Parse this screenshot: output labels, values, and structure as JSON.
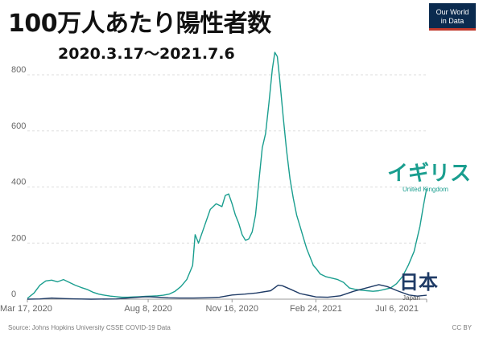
{
  "title": "100万人あたり陽性者数",
  "subtitle": "2020.3.17〜2021.7.6",
  "logo": {
    "line1": "Our World",
    "line2": "in Data"
  },
  "footer": {
    "source": "Source: Johns Hopkins University CSSE COVID-19 Data",
    "license": "CC BY"
  },
  "colors": {
    "uk": "#1a9e8f",
    "japan": "#1f3b66",
    "grid": "#dddddd",
    "axis": "#666666"
  },
  "chart_data": {
    "type": "line",
    "title": "100万人あたり陽性者数",
    "subtitle": "2020.3.17〜2021.7.6",
    "xlim": [
      "2020-03-17",
      "2021-07-06"
    ],
    "ylim": [
      0,
      880
    ],
    "yticks": [
      0,
      200,
      400,
      600,
      800
    ],
    "xticks": [
      {
        "date": "2020-03-17",
        "label": "Mar 17, 2020"
      },
      {
        "date": "2020-08-08",
        "label": "Aug 8, 2020"
      },
      {
        "date": "2020-11-16",
        "label": "Nov 16, 2020"
      },
      {
        "date": "2021-02-24",
        "label": "Feb 24, 2021"
      },
      {
        "date": "2021-07-06",
        "label": "Jul 6, 2021"
      }
    ],
    "grid": true,
    "series": [
      {
        "name": "United Kingdom",
        "label_ja": "イギリス",
        "color": "#1a9e8f",
        "points": [
          [
            "2020-03-17",
            3
          ],
          [
            "2020-03-25",
            22
          ],
          [
            "2020-04-01",
            50
          ],
          [
            "2020-04-08",
            65
          ],
          [
            "2020-04-15",
            68
          ],
          [
            "2020-04-22",
            62
          ],
          [
            "2020-04-29",
            70
          ],
          [
            "2020-05-06",
            60
          ],
          [
            "2020-05-13",
            50
          ],
          [
            "2020-05-20",
            42
          ],
          [
            "2020-05-27",
            35
          ],
          [
            "2020-06-03",
            25
          ],
          [
            "2020-06-10",
            18
          ],
          [
            "2020-06-17",
            14
          ],
          [
            "2020-06-24",
            11
          ],
          [
            "2020-07-01",
            9
          ],
          [
            "2020-07-08",
            7
          ],
          [
            "2020-07-15",
            7
          ],
          [
            "2020-07-22",
            8
          ],
          [
            "2020-07-29",
            9
          ],
          [
            "2020-08-05",
            10
          ],
          [
            "2020-08-12",
            11
          ],
          [
            "2020-08-19",
            12
          ],
          [
            "2020-08-26",
            14
          ],
          [
            "2020-09-02",
            18
          ],
          [
            "2020-09-09",
            28
          ],
          [
            "2020-09-16",
            45
          ],
          [
            "2020-09-23",
            70
          ],
          [
            "2020-09-30",
            120
          ],
          [
            "2020-10-03",
            230
          ],
          [
            "2020-10-07",
            200
          ],
          [
            "2020-10-14",
            260
          ],
          [
            "2020-10-21",
            320
          ],
          [
            "2020-10-28",
            340
          ],
          [
            "2020-11-04",
            330
          ],
          [
            "2020-11-08",
            370
          ],
          [
            "2020-11-12",
            375
          ],
          [
            "2020-11-16",
            340
          ],
          [
            "2020-11-20",
            300
          ],
          [
            "2020-11-24",
            270
          ],
          [
            "2020-11-28",
            230
          ],
          [
            "2020-12-02",
            210
          ],
          [
            "2020-12-06",
            215
          ],
          [
            "2020-12-10",
            240
          ],
          [
            "2020-12-14",
            300
          ],
          [
            "2020-12-18",
            420
          ],
          [
            "2020-12-22",
            540
          ],
          [
            "2020-12-26",
            590
          ],
          [
            "2020-12-30",
            700
          ],
          [
            "2021-01-03",
            820
          ],
          [
            "2021-01-06",
            880
          ],
          [
            "2021-01-09",
            865
          ],
          [
            "2021-01-12",
            780
          ],
          [
            "2021-01-16",
            650
          ],
          [
            "2021-01-20",
            530
          ],
          [
            "2021-01-24",
            430
          ],
          [
            "2021-01-28",
            360
          ],
          [
            "2021-02-01",
            300
          ],
          [
            "2021-02-05",
            260
          ],
          [
            "2021-02-09",
            220
          ],
          [
            "2021-02-13",
            180
          ],
          [
            "2021-02-17",
            150
          ],
          [
            "2021-02-21",
            120
          ],
          [
            "2021-02-24",
            110
          ],
          [
            "2021-03-01",
            90
          ],
          [
            "2021-03-08",
            80
          ],
          [
            "2021-03-15",
            75
          ],
          [
            "2021-03-22",
            70
          ],
          [
            "2021-03-29",
            60
          ],
          [
            "2021-04-05",
            40
          ],
          [
            "2021-04-12",
            35
          ],
          [
            "2021-04-19",
            32
          ],
          [
            "2021-04-26",
            30
          ],
          [
            "2021-05-03",
            28
          ],
          [
            "2021-05-10",
            30
          ],
          [
            "2021-05-17",
            35
          ],
          [
            "2021-05-24",
            40
          ],
          [
            "2021-05-31",
            55
          ],
          [
            "2021-06-07",
            80
          ],
          [
            "2021-06-14",
            120
          ],
          [
            "2021-06-21",
            170
          ],
          [
            "2021-06-28",
            260
          ],
          [
            "2021-07-02",
            330
          ],
          [
            "2021-07-06",
            395
          ]
        ]
      },
      {
        "name": "Japan",
        "label_ja": "日本",
        "color": "#1f3b66",
        "points": [
          [
            "2020-03-17",
            0
          ],
          [
            "2020-04-01",
            1
          ],
          [
            "2020-04-15",
            4
          ],
          [
            "2020-05-01",
            2
          ],
          [
            "2020-05-15",
            1
          ],
          [
            "2020-06-01",
            0
          ],
          [
            "2020-07-01",
            1
          ],
          [
            "2020-07-15",
            4
          ],
          [
            "2020-08-01",
            8
          ],
          [
            "2020-08-08",
            9
          ],
          [
            "2020-08-20",
            7
          ],
          [
            "2020-09-01",
            5
          ],
          [
            "2020-09-15",
            4
          ],
          [
            "2020-10-01",
            4
          ],
          [
            "2020-10-15",
            5
          ],
          [
            "2020-11-01",
            7
          ],
          [
            "2020-11-16",
            15
          ],
          [
            "2020-12-01",
            18
          ],
          [
            "2020-12-15",
            22
          ],
          [
            "2021-01-01",
            30
          ],
          [
            "2021-01-10",
            50
          ],
          [
            "2021-01-15",
            48
          ],
          [
            "2021-01-25",
            35
          ],
          [
            "2021-02-05",
            20
          ],
          [
            "2021-02-24",
            8
          ],
          [
            "2021-03-10",
            7
          ],
          [
            "2021-03-25",
            12
          ],
          [
            "2021-04-10",
            28
          ],
          [
            "2021-04-25",
            40
          ],
          [
            "2021-05-10",
            52
          ],
          [
            "2021-05-20",
            45
          ],
          [
            "2021-06-01",
            30
          ],
          [
            "2021-06-15",
            15
          ],
          [
            "2021-06-25",
            11
          ],
          [
            "2021-07-06",
            14
          ]
        ]
      }
    ]
  }
}
